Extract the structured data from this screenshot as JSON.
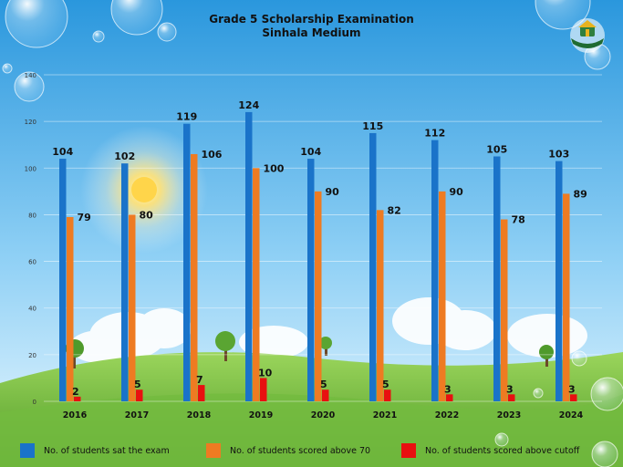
{
  "colors": {
    "sky_top": "#2f9de0",
    "sky_bottom": "#e6f6ff",
    "grass": "#7dc34a",
    "grass_dark": "#4f9a2b",
    "sat": "#1a73c9",
    "above70": "#ee7b22",
    "cutoff": "#e81010"
  },
  "chart_data": {
    "type": "bar",
    "title": "Grade 5 Scholarship Examination",
    "subtitle": "Sinhala Medium",
    "categories": [
      "2016",
      "2017",
      "2018",
      "2019",
      "2020",
      "2021",
      "2022",
      "2023",
      "2024"
    ],
    "series": [
      {
        "name": "No. of students sat the exam",
        "values": [
          104,
          102,
          119,
          124,
          104,
          115,
          112,
          105,
          103
        ]
      },
      {
        "name": "No. of students scored above 70",
        "values": [
          79,
          80,
          106,
          100,
          90,
          82,
          90,
          78,
          89
        ]
      },
      {
        "name": "No. of students scored above cutoff",
        "values": [
          2,
          5,
          7,
          10,
          5,
          5,
          3,
          3,
          3
        ]
      }
    ],
    "y_ticks": [
      "0",
      "20",
      "40",
      "60",
      "80",
      "100",
      "120",
      "140"
    ],
    "ylim": [
      0,
      140
    ],
    "grid": true,
    "legend": "bottom",
    "data_labels": true
  },
  "logo": {
    "icon": "emblem-icon"
  }
}
